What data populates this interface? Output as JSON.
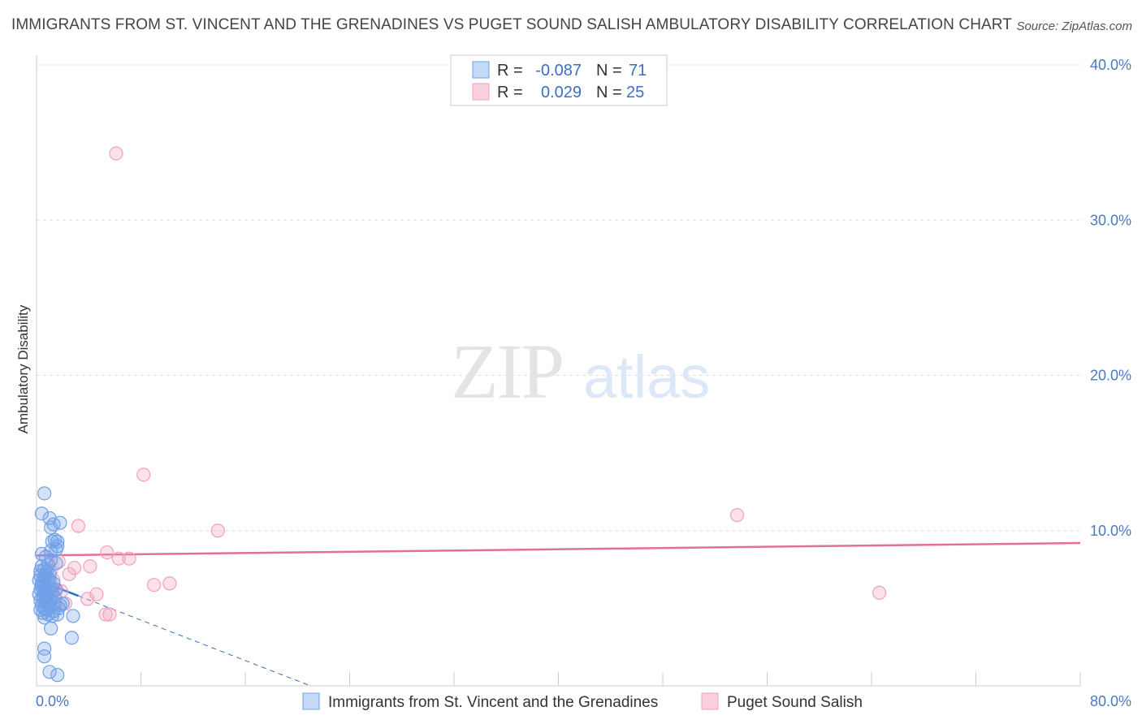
{
  "title": "IMMIGRANTS FROM ST. VINCENT AND THE GRENADINES VS PUGET SOUND SALISH AMBULATORY DISABILITY CORRELATION CHART",
  "source": "Source: ZipAtlas.com",
  "watermark": {
    "zip": "ZIP",
    "atlas": "atlas"
  },
  "colors": {
    "blue": "#6fa0e8",
    "blue_line": "#2f6fd0",
    "pink": "#f2a0bb",
    "pink_line": "#e0709a",
    "tick": "#4a78c2",
    "grid": "#dddddd"
  },
  "legend": {
    "r_label": "R =",
    "n_label": "N =",
    "rows": [
      {
        "r": "-0.087",
        "n": "71"
      },
      {
        "r": "0.029",
        "n": "25"
      }
    ]
  },
  "chart_data": {
    "type": "scatter",
    "title": "IMMIGRANTS FROM ST. VINCENT AND THE GRENADINES VS PUGET SOUND SALISH AMBULATORY DISABILITY CORRELATION CHART",
    "xlabel": "",
    "ylabel": "Ambulatory Disability",
    "xlim": [
      0,
      80
    ],
    "ylim": [
      0,
      40
    ],
    "x_tick_labels": [
      "0.0%",
      "80.0%"
    ],
    "y_ticks": [
      10,
      20,
      30,
      40
    ],
    "y_tick_labels": [
      "10.0%",
      "20.0%",
      "30.0%",
      "40.0%"
    ],
    "grid": true,
    "legend_position": "top-center",
    "series": [
      {
        "name": "Immigrants from St. Vincent and the Grenadines",
        "color": "#6fa0e8",
        "points": [
          [
            0.6,
            12.4
          ],
          [
            0.4,
            11.1
          ],
          [
            1.0,
            10.8
          ],
          [
            1.8,
            10.5
          ],
          [
            1.3,
            10.4
          ],
          [
            1.1,
            10.2
          ],
          [
            1.4,
            9.4
          ],
          [
            1.6,
            9.3
          ],
          [
            1.2,
            9.3
          ],
          [
            1.6,
            9.0
          ],
          [
            1.5,
            8.8
          ],
          [
            1.1,
            8.7
          ],
          [
            0.4,
            8.5
          ],
          [
            0.7,
            8.3
          ],
          [
            1.1,
            8.1
          ],
          [
            1.5,
            7.9
          ],
          [
            0.9,
            7.8
          ],
          [
            0.4,
            7.7
          ],
          [
            0.6,
            7.5
          ],
          [
            0.8,
            7.4
          ],
          [
            1.0,
            7.2
          ],
          [
            0.3,
            7.1
          ],
          [
            0.6,
            7.0
          ],
          [
            0.9,
            6.9
          ],
          [
            0.2,
            6.8
          ],
          [
            0.5,
            6.7
          ],
          [
            1.3,
            6.6
          ],
          [
            0.7,
            6.5
          ],
          [
            0.4,
            6.4
          ],
          [
            1.1,
            6.3
          ],
          [
            0.3,
            6.2
          ],
          [
            0.9,
            6.1
          ],
          [
            0.6,
            6.0
          ],
          [
            0.2,
            5.9
          ],
          [
            0.5,
            5.8
          ],
          [
            0.8,
            5.7
          ],
          [
            1.0,
            5.6
          ],
          [
            0.3,
            5.5
          ],
          [
            0.7,
            5.4
          ],
          [
            1.4,
            5.3
          ],
          [
            0.4,
            5.2
          ],
          [
            1.0,
            5.1
          ],
          [
            0.6,
            5.0
          ],
          [
            1.7,
            5.0
          ],
          [
            0.3,
            4.9
          ],
          [
            1.3,
            4.8
          ],
          [
            0.5,
            4.7
          ],
          [
            1.6,
            4.6
          ],
          [
            0.9,
            4.6
          ],
          [
            1.2,
            4.5
          ],
          [
            2.8,
            4.5
          ],
          [
            0.6,
            4.4
          ],
          [
            1.5,
            6.2
          ],
          [
            2.0,
            5.3
          ],
          [
            0.8,
            4.9
          ],
          [
            1.1,
            3.7
          ],
          [
            2.7,
            3.1
          ],
          [
            0.6,
            2.4
          ],
          [
            0.6,
            1.9
          ],
          [
            1.0,
            0.9
          ],
          [
            1.6,
            0.7
          ],
          [
            0.4,
            6.6
          ],
          [
            0.7,
            7.2
          ],
          [
            1.2,
            6.0
          ],
          [
            0.5,
            5.6
          ],
          [
            0.9,
            5.3
          ],
          [
            1.4,
            5.7
          ],
          [
            0.3,
            7.4
          ],
          [
            1.0,
            6.8
          ],
          [
            0.6,
            6.3
          ],
          [
            1.8,
            5.2
          ]
        ]
      },
      {
        "name": "Puget Sound Salish",
        "color": "#f2a0bb",
        "points": [
          [
            6.1,
            34.3
          ],
          [
            8.2,
            13.6
          ],
          [
            3.2,
            10.3
          ],
          [
            13.9,
            10.0
          ],
          [
            53.7,
            11.0
          ],
          [
            5.4,
            8.6
          ],
          [
            6.3,
            8.2
          ],
          [
            7.1,
            8.2
          ],
          [
            1.7,
            8.0
          ],
          [
            4.1,
            7.7
          ],
          [
            2.9,
            7.6
          ],
          [
            1.1,
            7.4
          ],
          [
            2.5,
            7.2
          ],
          [
            1.3,
            6.8
          ],
          [
            10.2,
            6.6
          ],
          [
            9.0,
            6.5
          ],
          [
            4.6,
            5.9
          ],
          [
            3.9,
            5.6
          ],
          [
            2.2,
            5.3
          ],
          [
            5.3,
            4.6
          ],
          [
            5.6,
            4.6
          ],
          [
            64.6,
            6.0
          ],
          [
            1.4,
            6.2
          ],
          [
            0.7,
            5.9
          ],
          [
            1.9,
            6.1
          ]
        ]
      }
    ],
    "trendlines": [
      {
        "series": "Immigrants from St. Vincent and the Grenadines",
        "solid": [
          [
            0.1,
            6.8
          ],
          [
            3.2,
            5.8
          ]
        ],
        "dashed": [
          [
            3.2,
            5.8
          ],
          [
            21.0,
            0.0
          ]
        ]
      },
      {
        "series": "Puget Sound Salish",
        "solid": [
          [
            0.0,
            8.4
          ],
          [
            80.0,
            9.2
          ]
        ]
      }
    ]
  }
}
